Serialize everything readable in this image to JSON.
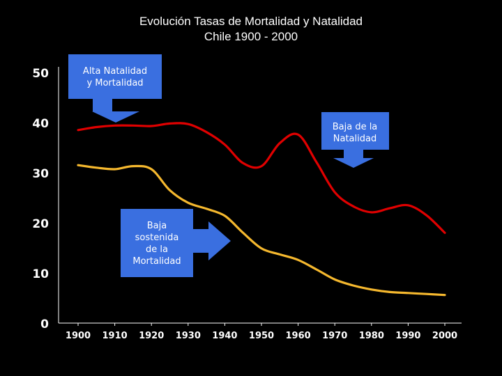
{
  "title_line1": "Evolución Tasas de Mortalidad y Natalidad",
  "title_line2": "Chile 1900 - 2000",
  "chart_data": {
    "type": "line",
    "x": [
      1900,
      1905,
      1910,
      1915,
      1920,
      1925,
      1930,
      1935,
      1940,
      1945,
      1950,
      1955,
      1960,
      1965,
      1970,
      1975,
      1980,
      1985,
      1990,
      1995,
      2000
    ],
    "series": [
      {
        "color": "#e00000",
        "values": [
          38.5,
          39.1,
          39.4,
          39.4,
          39.3,
          39.8,
          39.7,
          38.1,
          35.6,
          31.9,
          31.3,
          35.9,
          37.6,
          32.1,
          26.1,
          23.3,
          22.1,
          22.9,
          23.5,
          21.5,
          18.0
        ]
      },
      {
        "color": "#f5b82e",
        "values": [
          31.5,
          31.0,
          30.7,
          31.3,
          30.7,
          26.5,
          24.0,
          22.8,
          21.4,
          18.0,
          14.9,
          13.7,
          12.6,
          10.7,
          8.7,
          7.5,
          6.7,
          6.2,
          6.0,
          5.8,
          5.6
        ]
      }
    ],
    "xticks": [
      "1900",
      "1910",
      "1920",
      "1930",
      "1940",
      "1950",
      "1960",
      "1970",
      "1980",
      "1990",
      "2000"
    ],
    "yticks": [
      "0",
      "10",
      "20",
      "30",
      "40",
      "50"
    ],
    "xlim": [
      1900,
      2000
    ],
    "ylim": [
      0,
      50
    ],
    "grid": false,
    "annotations": [
      {
        "lines": [
          "Alta Natalidad",
          "y  Mortalidad"
        ],
        "arrow": "down"
      },
      {
        "lines": [
          "Baja de la",
          "Natalidad"
        ],
        "arrow": "down"
      },
      {
        "lines": [
          "Baja",
          "sostenida",
          "de la",
          "Mortalidad"
        ],
        "arrow": "right"
      }
    ],
    "colors": {
      "background": "#000000",
      "callout": "#3a6fe0",
      "axis": "#ffffff"
    }
  }
}
